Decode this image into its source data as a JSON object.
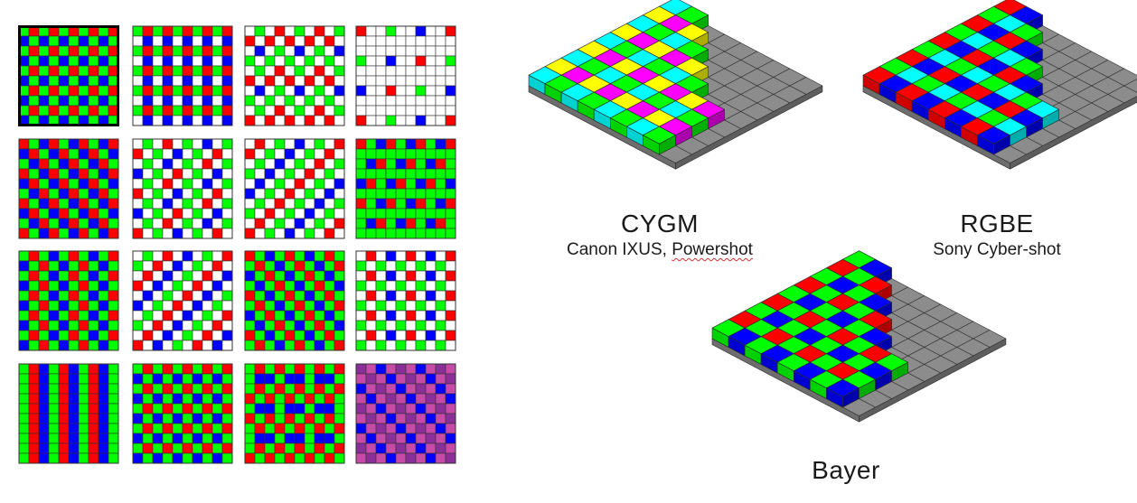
{
  "colors": {
    "R": "#ff0000",
    "G": "#00ff00",
    "B": "#0000ff",
    "C": "#00ffff",
    "Y": "#ffff00",
    "M": "#ff00ff",
    "W": "#ffffff",
    "P": "#8a2f9a",
    "K": "#c84aa8",
    "grid_line": "#333333",
    "base_top": "#8c8c8c",
    "base_side": "#6e6e6e"
  },
  "filter_grids": [
    {
      "name": "bayer",
      "highlighted": true
    },
    {
      "name": "rgbw-1"
    },
    {
      "name": "rgbw-2"
    },
    {
      "name": "rgbw-3"
    },
    {
      "name": "diagonal-rgb"
    },
    {
      "name": "rgbw-4"
    },
    {
      "name": "rgbw-5"
    },
    {
      "name": "rgb-stripe-rows"
    },
    {
      "name": "bayer-variant"
    },
    {
      "name": "rgbw-6"
    },
    {
      "name": "rgb-mixed"
    },
    {
      "name": "rgbw-7"
    },
    {
      "name": "vertical-stripes"
    },
    {
      "name": "rgb-horizontal-bars"
    },
    {
      "name": "rgb-horizontal-bars-2"
    },
    {
      "name": "purple-magenta"
    }
  ],
  "sensors": {
    "cygm": {
      "title": "CYGM",
      "subtitle_a": "Canon IXUS, ",
      "subtitle_b": "Powershot"
    },
    "rgbe": {
      "title": "RGBE",
      "subtitle": "Sony Cyber-shot"
    },
    "bayer": {
      "title": "Bayer"
    }
  }
}
